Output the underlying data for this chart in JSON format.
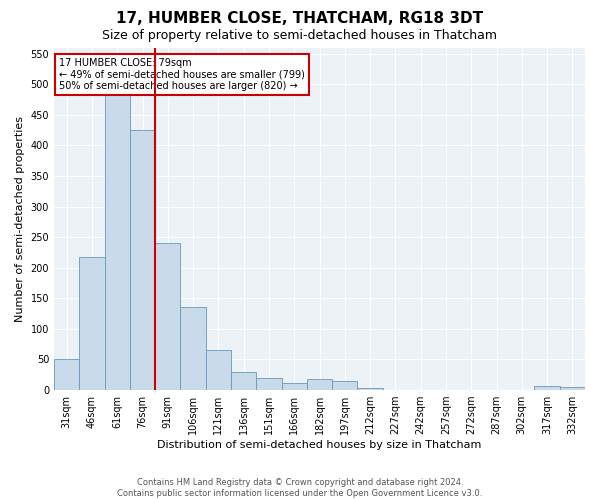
{
  "title": "17, HUMBER CLOSE, THATCHAM, RG18 3DT",
  "subtitle": "Size of property relative to semi-detached houses in Thatcham",
  "xlabel": "Distribution of semi-detached houses by size in Thatcham",
  "ylabel": "Number of semi-detached properties",
  "footer_line1": "Contains HM Land Registry data © Crown copyright and database right 2024.",
  "footer_line2": "Contains public sector information licensed under the Open Government Licence v3.0.",
  "annotation_title": "17 HUMBER CLOSE: 79sqm",
  "annotation_line1": "← 49% of semi-detached houses are smaller (799)",
  "annotation_line2": "50% of semi-detached houses are larger (820) →",
  "bar_color": "#c9daea",
  "bar_edge_color": "#6699bb",
  "vline_color": "#cc0000",
  "annotation_box_color": "#cc0000",
  "background_color": "#edf2f7",
  "categories": [
    "31sqm",
    "46sqm",
    "61sqm",
    "76sqm",
    "91sqm",
    "106sqm",
    "121sqm",
    "136sqm",
    "151sqm",
    "166sqm",
    "182sqm",
    "197sqm",
    "212sqm",
    "227sqm",
    "242sqm",
    "257sqm",
    "272sqm",
    "287sqm",
    "302sqm",
    "317sqm",
    "332sqm"
  ],
  "values": [
    50,
    218,
    510,
    425,
    240,
    135,
    65,
    30,
    20,
    12,
    18,
    15,
    4,
    0,
    0,
    0,
    0,
    0,
    0,
    6,
    5
  ],
  "ylim": [
    0,
    560
  ],
  "yticks": [
    0,
    50,
    100,
    150,
    200,
    250,
    300,
    350,
    400,
    450,
    500,
    550
  ],
  "vline_x": 3.5,
  "title_fontsize": 11,
  "subtitle_fontsize": 9,
  "xlabel_fontsize": 8,
  "ylabel_fontsize": 8,
  "tick_fontsize": 7,
  "annotation_fontsize": 7,
  "footer_fontsize": 6
}
